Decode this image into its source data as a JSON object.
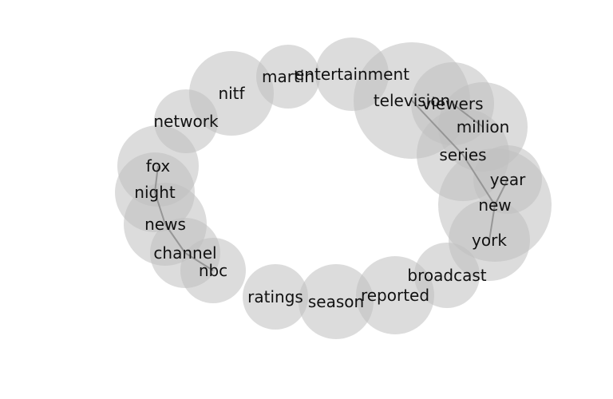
{
  "nodes": [
    {
      "id": "entertainment",
      "label": "entertainment"
    },
    {
      "id": "martin",
      "label": "martin"
    },
    {
      "id": "nitf",
      "label": "nitf"
    },
    {
      "id": "network",
      "label": "network"
    },
    {
      "id": "fox",
      "label": "fox"
    },
    {
      "id": "night",
      "label": "night"
    },
    {
      "id": "news",
      "label": "news"
    },
    {
      "id": "channel",
      "label": "channel"
    },
    {
      "id": "nbc",
      "label": "nbc"
    },
    {
      "id": "ratings",
      "label": "ratings"
    },
    {
      "id": "season",
      "label": "season"
    },
    {
      "id": "reported",
      "label": "reported"
    },
    {
      "id": "broadcast",
      "label": "broadcast"
    },
    {
      "id": "york",
      "label": "york"
    },
    {
      "id": "new",
      "label": "new"
    },
    {
      "id": "year",
      "label": "year"
    },
    {
      "id": "series",
      "label": "series"
    },
    {
      "id": "million",
      "label": "million"
    },
    {
      "id": "viewers",
      "label": "viewers"
    },
    {
      "id": "television",
      "label": "television"
    }
  ],
  "edges": [
    {
      "source": "fox",
      "target": "night"
    },
    {
      "source": "night",
      "target": "news"
    },
    {
      "source": "news",
      "target": "channel"
    },
    {
      "source": "channel",
      "target": "nbc"
    },
    {
      "source": "television",
      "target": "series"
    },
    {
      "source": "viewers",
      "target": "million"
    },
    {
      "source": "series",
      "target": "new"
    },
    {
      "source": "year",
      "target": "new"
    },
    {
      "source": "new",
      "target": "york"
    }
  ],
  "colors": {
    "circle_fill": "#c0c0c0",
    "edge": "#8c8c8c",
    "label": "#111111"
  }
}
